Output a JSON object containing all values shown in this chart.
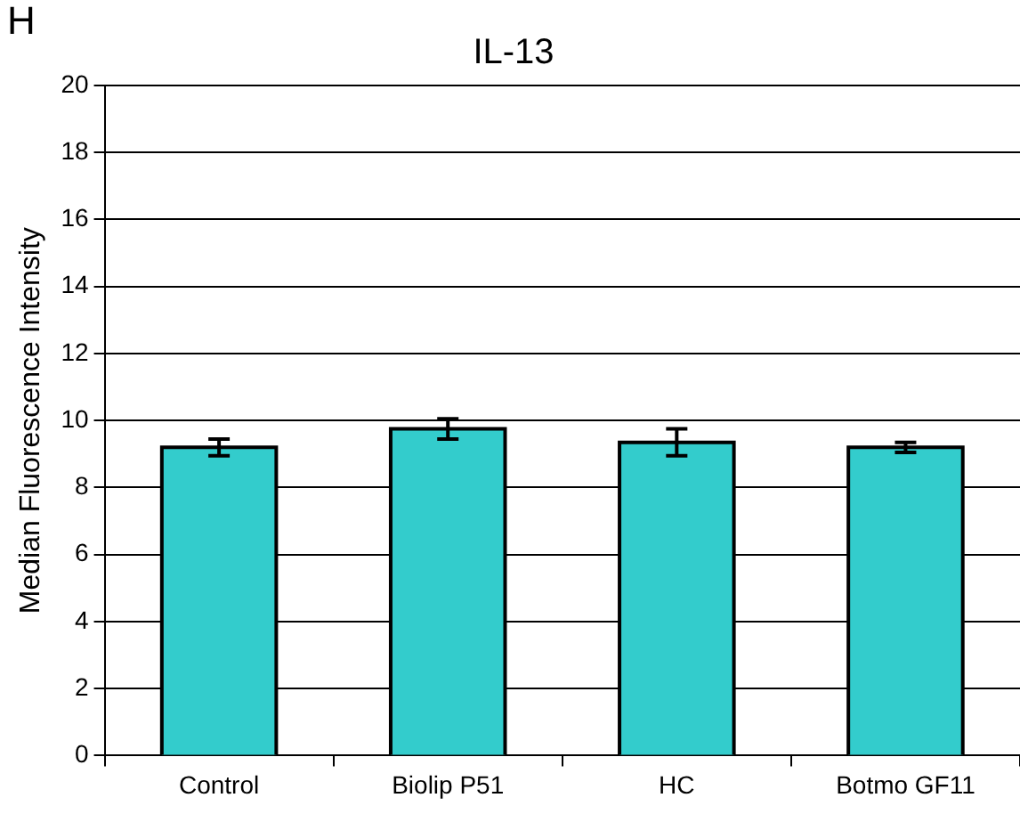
{
  "chart_data": {
    "type": "bar",
    "title": "IL-13",
    "ylabel": "Median Fluorescence Intensity",
    "annotations": [
      "H"
    ],
    "categories": [
      "Control",
      "Biolip P51",
      "HC",
      "Botmo GF11"
    ],
    "values": [
      9.2,
      9.75,
      9.35,
      9.2
    ],
    "errors": [
      0.25,
      0.3,
      0.4,
      0.15
    ],
    "color": "#33cccc",
    "ylim": [
      0,
      20
    ],
    "yticks": [
      0,
      2,
      4,
      6,
      8,
      10,
      12,
      14,
      16,
      18,
      20
    ],
    "grid": "y",
    "legend": false
  }
}
